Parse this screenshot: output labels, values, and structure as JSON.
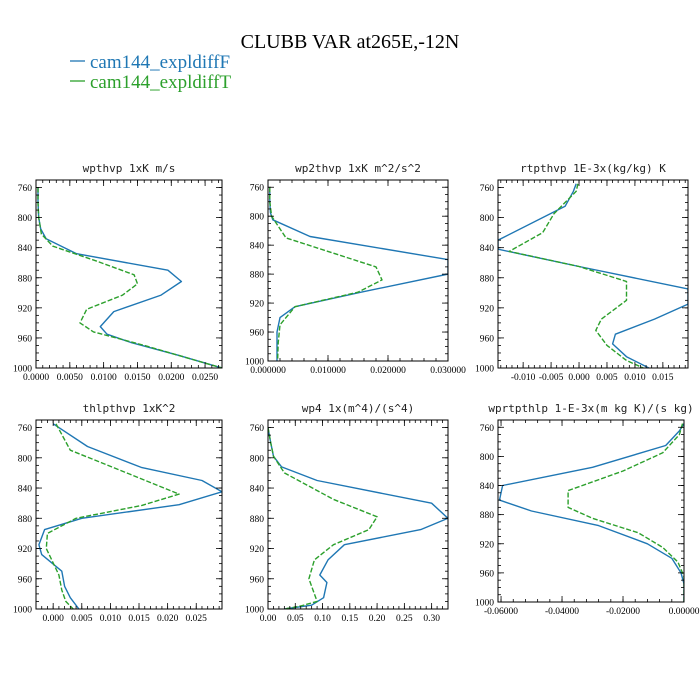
{
  "figure": {
    "title": "CLUBB VAR at265E,-12N",
    "legend": [
      {
        "label": "cam144_expldiffF",
        "color": "#1f77b4",
        "dash": "solid"
      },
      {
        "label": "cam144_expldiffT",
        "color": "#2ca02c",
        "dash": "dashed"
      }
    ]
  },
  "chart_data": [
    {
      "type": "line",
      "title": "wpthvp  1xK m/s",
      "xlim": [
        0.0,
        0.0275
      ],
      "ylim": [
        1000,
        750
      ],
      "xticks": [
        0.0,
        0.005,
        0.01,
        0.015,
        0.02,
        0.025
      ],
      "xtick_labels": [
        "0.0000",
        "0.0050",
        "0.0100",
        "0.0150",
        "0.0200",
        "0.0250"
      ],
      "yticks": [
        760,
        800,
        840,
        880,
        920,
        960,
        1000
      ],
      "ytick_labels": [
        "760",
        "800",
        "840",
        "880",
        "920",
        "960",
        "1000"
      ],
      "series": [
        {
          "name": "cam144_expldiffF",
          "color": "#1f77b4",
          "dash": "solid",
          "x": [
            0.0003,
            0.0003,
            0.0004,
            0.0007,
            0.0015,
            0.006,
            0.0195,
            0.0215,
            0.0185,
            0.0115,
            0.0095,
            0.0105,
            0.014,
            0.021,
            0.0275
          ],
          "y": [
            760,
            780,
            800,
            815,
            828,
            848,
            870,
            885,
            903,
            925,
            945,
            955,
            966,
            983,
            1000
          ]
        },
        {
          "name": "cam144_expldiffT",
          "color": "#2ca02c",
          "dash": "dashed",
          "x": [
            0.0003,
            0.0003,
            0.0004,
            0.0008,
            0.0025,
            0.009,
            0.0145,
            0.015,
            0.0128,
            0.0075,
            0.0065,
            0.0085,
            0.016,
            0.0275
          ],
          "y": [
            760,
            780,
            800,
            822,
            838,
            858,
            876,
            888,
            903,
            922,
            940,
            952,
            970,
            1000
          ]
        }
      ]
    },
    {
      "type": "line",
      "title": "wp2thvp  1xK m^2/s^2",
      "xlim": [
        0.0,
        0.03
      ],
      "ylim": [
        1000,
        750
      ],
      "xticks": [
        0.0,
        0.01,
        0.02,
        0.03
      ],
      "xtick_labels": [
        "0.000000",
        "0.010000",
        "0.020000",
        "0.030000"
      ],
      "yticks": [
        760,
        800,
        840,
        880,
        920,
        960,
        1000
      ],
      "ytick_labels": [
        "760",
        "800",
        "840",
        "880",
        "920",
        "960",
        "1000"
      ],
      "series": [
        {
          "name": "cam144_expldiffF",
          "color": "#1f77b4",
          "dash": "solid",
          "x": [
            0.0003,
            0.0003,
            0.0004,
            0.0008,
            0.007,
            0.03,
            0.03,
            0.0155,
            0.0045,
            0.002,
            0.0015,
            0.0015,
            0.0015
          ],
          "y": [
            760,
            780,
            795,
            805,
            828,
            860,
            880,
            905,
            925,
            940,
            960,
            980,
            1000
          ]
        },
        {
          "name": "cam144_expldiffT",
          "color": "#2ca02c",
          "dash": "dashed",
          "x": [
            0.0003,
            0.0003,
            0.0006,
            0.003,
            0.018,
            0.019,
            0.015,
            0.0045,
            0.002,
            0.0017,
            0.0016
          ],
          "y": [
            760,
            780,
            800,
            830,
            870,
            888,
            905,
            925,
            950,
            975,
            1000
          ]
        }
      ]
    },
    {
      "type": "line",
      "title": "rtpthvp  1E-3x(kg/kg) K",
      "xlim": [
        -0.0145,
        0.0195
      ],
      "ylim": [
        1000,
        750
      ],
      "xticks": [
        -0.01,
        -0.005,
        0.0,
        0.005,
        0.01,
        0.015
      ],
      "xtick_labels": [
        "-0.010",
        "-0.005",
        "0.000",
        "0.005",
        "0.010",
        "0.015"
      ],
      "yticks": [
        760,
        800,
        840,
        880,
        920,
        960,
        1000
      ],
      "ytick_labels": [
        "760",
        "800",
        "840",
        "880",
        "920",
        "960",
        "1000"
      ],
      "series": [
        {
          "name": "cam144_expldiffF",
          "color": "#1f77b4",
          "dash": "solid",
          "x": [
            -0.0005,
            -0.001,
            -0.0025,
            -0.0145,
            -0.0145,
            0.0,
            0.0195,
            0.0195,
            0.0135,
            0.0065,
            0.006,
            0.0085,
            0.0125
          ],
          "y": [
            755,
            765,
            785,
            830,
            842,
            865,
            895,
            915,
            935,
            955,
            968,
            985,
            1000
          ]
        },
        {
          "name": "cam144_expldiffT",
          "color": "#2ca02c",
          "dash": "dashed",
          "x": [
            -0.0002,
            -0.0005,
            -0.0045,
            -0.0065,
            -0.0125,
            0.0,
            0.0085,
            0.0085,
            0.004,
            0.003,
            0.005,
            0.0085,
            0.0115
          ],
          "y": [
            755,
            765,
            795,
            820,
            845,
            865,
            885,
            910,
            935,
            950,
            970,
            990,
            1000
          ]
        }
      ]
    },
    {
      "type": "line",
      "title": "thlpthvp  1xK^2",
      "xlim": [
        -0.003,
        0.0295
      ],
      "ylim": [
        1000,
        750
      ],
      "xticks": [
        0.0,
        0.005,
        0.01,
        0.015,
        0.02,
        0.025
      ],
      "xtick_labels": [
        "0.000",
        "0.005",
        "0.010",
        "0.015",
        "0.020",
        "0.025"
      ],
      "yticks": [
        760,
        800,
        840,
        880,
        920,
        960,
        1000
      ],
      "ytick_labels": [
        "760",
        "800",
        "840",
        "880",
        "920",
        "960",
        "1000"
      ],
      "series": [
        {
          "name": "cam144_expldiffF",
          "color": "#1f77b4",
          "dash": "solid",
          "x": [
            0.0,
            0.006,
            0.0155,
            0.026,
            0.0295,
            0.022,
            0.005,
            -0.0015,
            -0.0025,
            -0.002,
            0.0015,
            0.002,
            0.003,
            0.0045
          ],
          "y": [
            755,
            785,
            813,
            830,
            845,
            862,
            880,
            895,
            915,
            928,
            950,
            970,
            985,
            1000
          ]
        },
        {
          "name": "cam144_expldiffT",
          "color": "#2ca02c",
          "dash": "dashed",
          "x": [
            0.0005,
            0.003,
            0.0135,
            0.022,
            0.0155,
            0.004,
            -0.001,
            -0.0012,
            0.001,
            0.0015,
            0.0022,
            0.0035
          ],
          "y": [
            755,
            790,
            822,
            848,
            863,
            880,
            900,
            920,
            955,
            975,
            990,
            1000
          ]
        }
      ]
    },
    {
      "type": "line",
      "title": "wp4  1x(m^4)/(s^4)",
      "xlim": [
        0.0,
        0.33
      ],
      "ylim": [
        1000,
        750
      ],
      "xticks": [
        0.0,
        0.05,
        0.1,
        0.15,
        0.2,
        0.25,
        0.3
      ],
      "xtick_labels": [
        "0.00",
        "0.05",
        "0.10",
        "0.15",
        "0.20",
        "0.25",
        "0.30"
      ],
      "yticks": [
        760,
        800,
        840,
        880,
        920,
        960,
        1000
      ],
      "ytick_labels": [
        "760",
        "800",
        "840",
        "880",
        "920",
        "960",
        "1000"
      ],
      "series": [
        {
          "name": "cam144_expldiffF",
          "color": "#1f77b4",
          "dash": "solid",
          "x": [
            0.0,
            0.005,
            0.01,
            0.025,
            0.09,
            0.3,
            0.33,
            0.28,
            0.14,
            0.11,
            0.095,
            0.108,
            0.102,
            0.08,
            0.03
          ],
          "y": [
            760,
            780,
            798,
            812,
            830,
            860,
            880,
            895,
            915,
            935,
            955,
            965,
            985,
            995,
            1000
          ]
        },
        {
          "name": "cam144_expldiffT",
          "color": "#2ca02c",
          "dash": "dashed",
          "x": [
            0.0,
            0.005,
            0.01,
            0.03,
            0.12,
            0.2,
            0.185,
            0.12,
            0.085,
            0.075,
            0.085,
            0.09,
            0.06,
            0.03
          ],
          "y": [
            760,
            780,
            798,
            820,
            855,
            878,
            895,
            915,
            935,
            960,
            980,
            990,
            996,
            1000
          ]
        }
      ]
    },
    {
      "type": "line",
      "title": "wprtpthlp  1-E-3x(m kg K)/(s kg)",
      "xlim": [
        -0.061,
        0.0
      ],
      "ylim": [
        1000,
        750
      ],
      "xticks": [
        -0.06,
        -0.04,
        -0.02,
        0.0
      ],
      "xtick_labels": [
        "-0.06000",
        "-0.04000",
        "-0.02000",
        "0.00000"
      ],
      "yticks": [
        760,
        800,
        840,
        880,
        920,
        960,
        1000
      ],
      "ytick_labels": [
        "760",
        "800",
        "840",
        "880",
        "920",
        "960",
        "1000"
      ],
      "series": [
        {
          "name": "cam144_expldiffF",
          "color": "#1f77b4",
          "dash": "solid",
          "x": [
            0.0,
            -0.0015,
            -0.006,
            -0.03,
            -0.0595,
            -0.0605,
            -0.05,
            -0.028,
            -0.012,
            -0.004,
            -0.001,
            0.0,
            0.0
          ],
          "y": [
            755,
            765,
            785,
            815,
            840,
            860,
            875,
            895,
            920,
            940,
            960,
            975,
            1000
          ]
        },
        {
          "name": "cam144_expldiffT",
          "color": "#2ca02c",
          "dash": "dashed",
          "x": [
            -0.0005,
            -0.0015,
            -0.007,
            -0.02,
            -0.038,
            -0.038,
            -0.03,
            -0.015,
            -0.007,
            -0.002,
            0.0,
            0.0
          ],
          "y": [
            755,
            770,
            795,
            820,
            847,
            870,
            885,
            905,
            925,
            945,
            965,
            1000
          ]
        }
      ]
    }
  ]
}
